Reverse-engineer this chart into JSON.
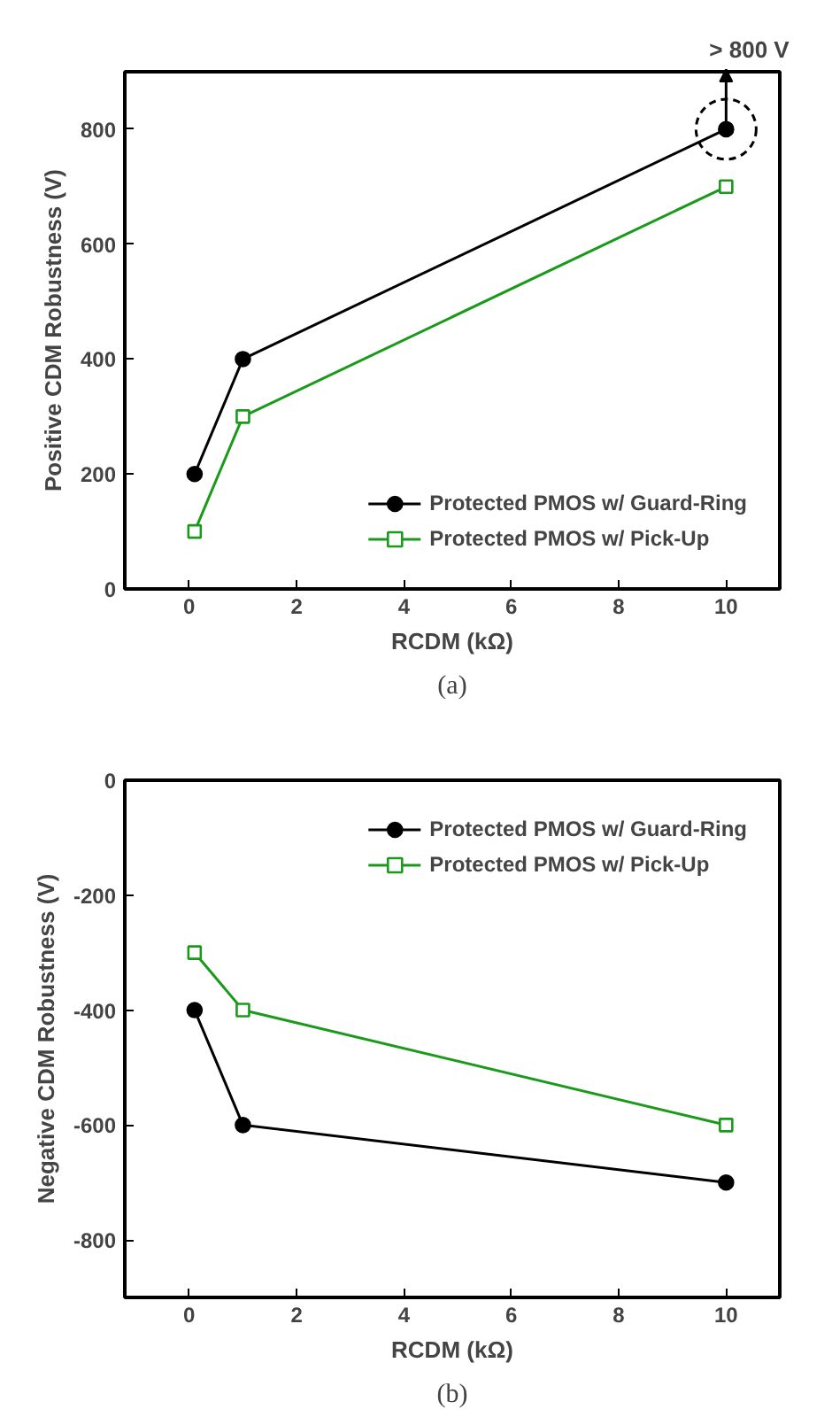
{
  "chart_data": [
    {
      "type": "line",
      "title": "(a)",
      "xlabel": "RCDM (kΩ)",
      "ylabel": "Positive CDM Robustness (V)",
      "x": [
        0.1,
        1,
        10
      ],
      "xlim": [
        -1.2,
        11
      ],
      "xticks": [
        0,
        2,
        4,
        6,
        8,
        10
      ],
      "ylim": [
        0,
        900
      ],
      "yticks": [
        0,
        200,
        400,
        600,
        800
      ],
      "grid": false,
      "legend": "bottom right",
      "annotations": [
        {
          "text": "> 800 V",
          "x": 10,
          "y": 800
        }
      ],
      "series": [
        {
          "name": "Protected PMOS w/ Guard-Ring",
          "color": "#000000",
          "marker": "circle",
          "values": [
            200,
            400,
            800
          ]
        },
        {
          "name": "Protected PMOS w/ Pick-Up",
          "color": "#1a9a1a",
          "marker": "square",
          "values": [
            100,
            300,
            700
          ]
        }
      ]
    },
    {
      "type": "line",
      "title": "(b)",
      "xlabel": "RCDM (kΩ)",
      "ylabel": "Negative CDM Robustness (V)",
      "x": [
        0.1,
        1,
        10
      ],
      "xlim": [
        -1.2,
        11
      ],
      "xticks": [
        0,
        2,
        4,
        6,
        8,
        10
      ],
      "ylim": [
        -900,
        0
      ],
      "yticks": [
        -800,
        -600,
        -400,
        -200,
        0
      ],
      "grid": false,
      "legend": "top right",
      "series": [
        {
          "name": "Protected PMOS w/ Guard-Ring",
          "color": "#000000",
          "marker": "circle",
          "values": [
            -400,
            -600,
            -700
          ]
        },
        {
          "name": "Protected PMOS w/ Pick-Up",
          "color": "#1a9a1a",
          "marker": "square",
          "values": [
            -300,
            -400,
            -600
          ]
        }
      ]
    }
  ]
}
